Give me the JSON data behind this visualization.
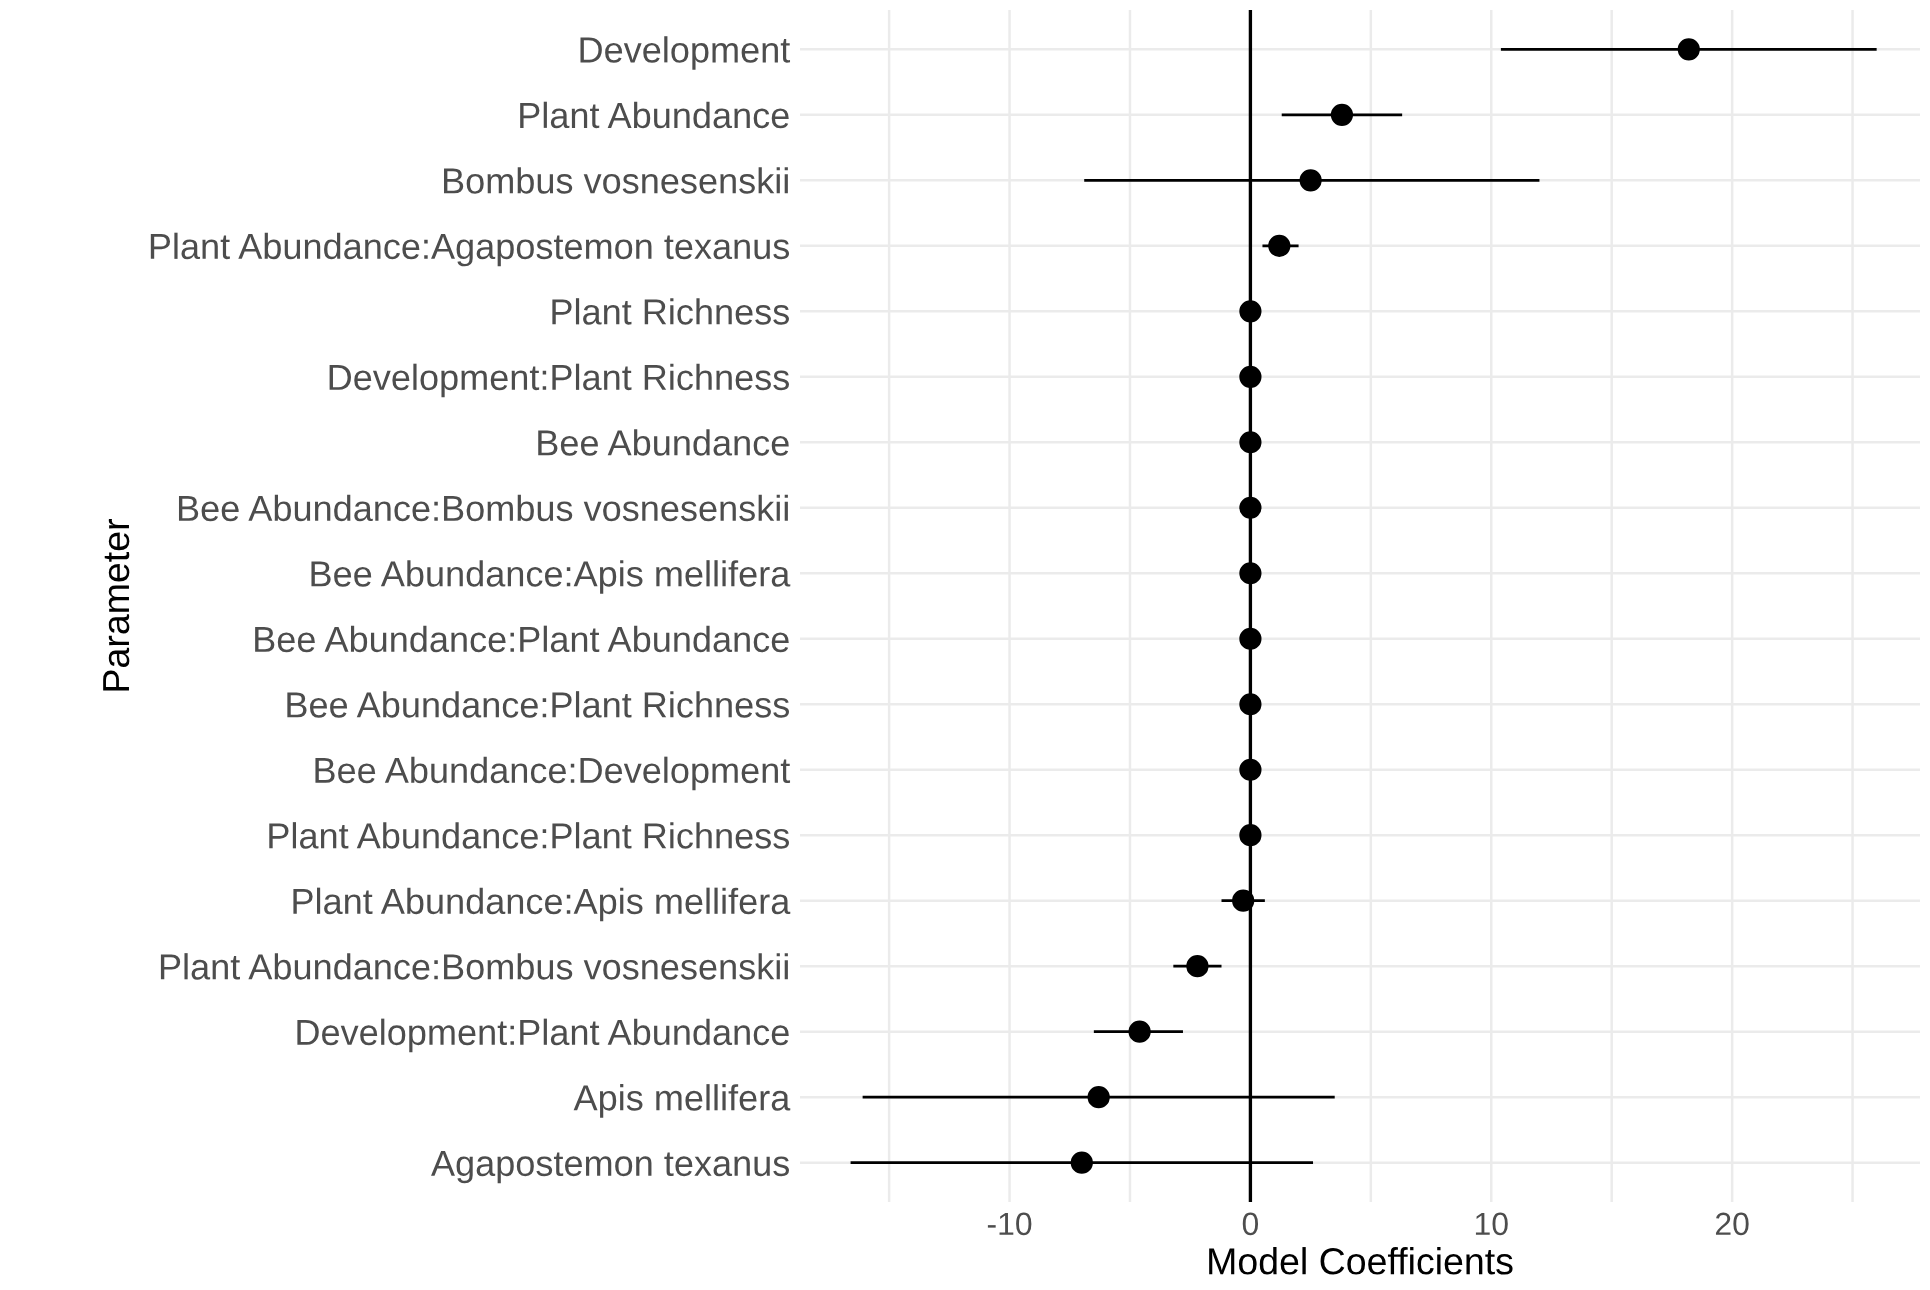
{
  "chart_data": {
    "type": "scatter",
    "orientation": "horizontal",
    "xlabel": "Model Coefficients",
    "ylabel": "Parameter",
    "categories": [
      "Development",
      "Plant Abundance",
      "Bombus vosnesenskii",
      "Plant Abundance:Agapostemon texanus",
      "Plant Richness",
      "Development:Plant Richness",
      "Bee Abundance",
      "Bee Abundance:Bombus vosnesenskii",
      "Bee Abundance:Apis mellifera",
      "Bee Abundance:Plant Abundance",
      "Bee Abundance:Plant Richness",
      "Bee Abundance:Development",
      "Plant Abundance:Plant Richness",
      "Plant Abundance:Apis mellifera",
      "Plant Abundance:Bombus vosnesenskii",
      "Development:Plant Abundance",
      "Apis mellifera",
      "Agapostemon texanus"
    ],
    "series": [
      {
        "color": "#000000",
        "values": [
          18.2,
          3.8,
          2.5,
          1.2,
          0,
          0,
          0,
          0,
          0,
          0,
          0,
          0,
          0,
          -0.3,
          -2.2,
          -4.6,
          -6.3,
          -7.0
        ],
        "errors": [
          [
            10.4,
            26.0
          ],
          [
            1.3,
            6.3
          ],
          [
            -6.9,
            12.0
          ],
          [
            0.5,
            2.0
          ],
          null,
          null,
          null,
          null,
          null,
          null,
          null,
          null,
          null,
          [
            -1.2,
            0.6
          ],
          [
            -3.2,
            -1.2
          ],
          [
            -6.5,
            -2.8
          ],
          [
            -16.1,
            3.5
          ],
          [
            -16.6,
            2.6
          ]
        ]
      }
    ],
    "xlim": [
      -18.7,
      27.8
    ],
    "xticks": [
      {
        "value": -15,
        "label": null
      },
      -10,
      {
        "value": -5,
        "label": null
      },
      0,
      {
        "value": 5,
        "label": null
      },
      10,
      {
        "value": 15,
        "label": null
      },
      20,
      {
        "value": 25,
        "label": null
      }
    ],
    "ref_lines": [
      {
        "axis": "x",
        "value": 0,
        "label": null,
        "color": "#000000"
      }
    ],
    "grid": true,
    "marker": "circle"
  }
}
